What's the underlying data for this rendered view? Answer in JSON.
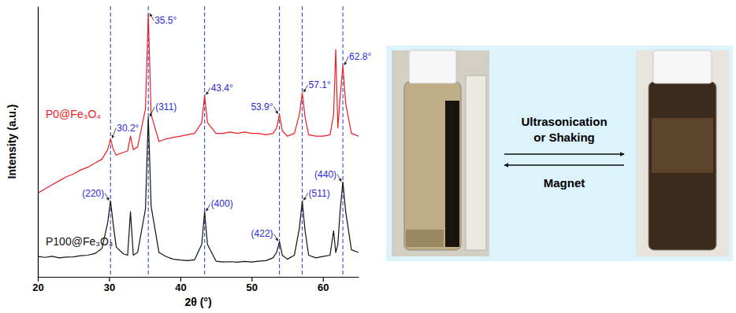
{
  "chart_data": {
    "type": "line",
    "x_label": "2θ (°)",
    "y_label": "Intensity (a.u.)",
    "x": [
      20,
      21,
      22,
      23,
      24,
      25,
      26,
      27,
      28,
      29,
      29.8,
      30.2,
      30.6,
      31,
      32,
      32.6,
      33,
      33.4,
      34,
      35.1,
      35.5,
      35.9,
      37,
      38,
      39,
      40,
      41,
      42,
      43,
      43.4,
      43.8,
      45,
      46,
      47,
      48,
      49,
      50,
      51,
      52,
      53,
      53.5,
      53.9,
      54.3,
      55,
      56,
      56.7,
      57.1,
      57.5,
      58,
      59,
      60,
      61,
      61.5,
      61.8,
      62.1,
      62.4,
      62.8,
      63.2,
      64,
      65
    ],
    "series": [
      {
        "name": "P0@Fe₃O₄",
        "color": "#ee1c24",
        "values": [
          31,
          32.5,
          34,
          35.5,
          37,
          38,
          39.5,
          40.5,
          42,
          43.5,
          47,
          51,
          47,
          45,
          46,
          46.5,
          52,
          47,
          48,
          62,
          97,
          60,
          50,
          51,
          51.5,
          52,
          52.5,
          53,
          57,
          67,
          57,
          53,
          53,
          53.5,
          53,
          53.5,
          53,
          53,
          52.5,
          53,
          55,
          60,
          54,
          52,
          53,
          60,
          68,
          59,
          52.5,
          52,
          52,
          52.5,
          60,
          84,
          55,
          66,
          78,
          64,
          53,
          52
        ]
      },
      {
        "name": "P100@Fe₃O₄",
        "color": "#111111",
        "values": [
          7.5,
          7.2,
          7.6,
          7.0,
          7.3,
          7.4,
          7.8,
          8.0,
          8.6,
          10.5,
          20,
          28,
          19,
          11,
          8.5,
          8,
          24,
          8,
          9,
          25,
          59,
          26,
          9,
          7.5,
          6.5,
          6.2,
          6,
          6.3,
          12,
          24,
          12,
          5.8,
          5.5,
          5.6,
          5.4,
          5.7,
          5.5,
          5.8,
          6,
          7,
          9,
          13,
          8,
          6.5,
          8,
          18,
          28,
          17,
          8,
          7,
          7.5,
          8,
          17,
          9,
          12,
          24,
          35,
          24,
          10,
          9
        ]
      }
    ],
    "xlim": [
      20,
      65
    ],
    "ylim": [
      0,
      100
    ],
    "xticks": [
      20,
      30,
      40,
      50,
      60
    ],
    "yticks": [],
    "tick_labels": "x",
    "peaks": [
      {
        "x": 30.2,
        "label": "30.2°",
        "hkl": "(220)"
      },
      {
        "x": 35.5,
        "label": "35.5°",
        "hkl": "(311)"
      },
      {
        "x": 43.4,
        "label": "43.4°",
        "hkl": "(400)"
      },
      {
        "x": 53.9,
        "label": "53.9°",
        "hkl": "(422)"
      },
      {
        "x": 57.1,
        "label": "57.1°",
        "hkl": "(511)"
      },
      {
        "x": 62.8,
        "label": "62.8°",
        "hkl": "(440)"
      }
    ]
  },
  "scheme": {
    "forward": "Ultrasonication or Shaking",
    "backward": "Magnet"
  }
}
